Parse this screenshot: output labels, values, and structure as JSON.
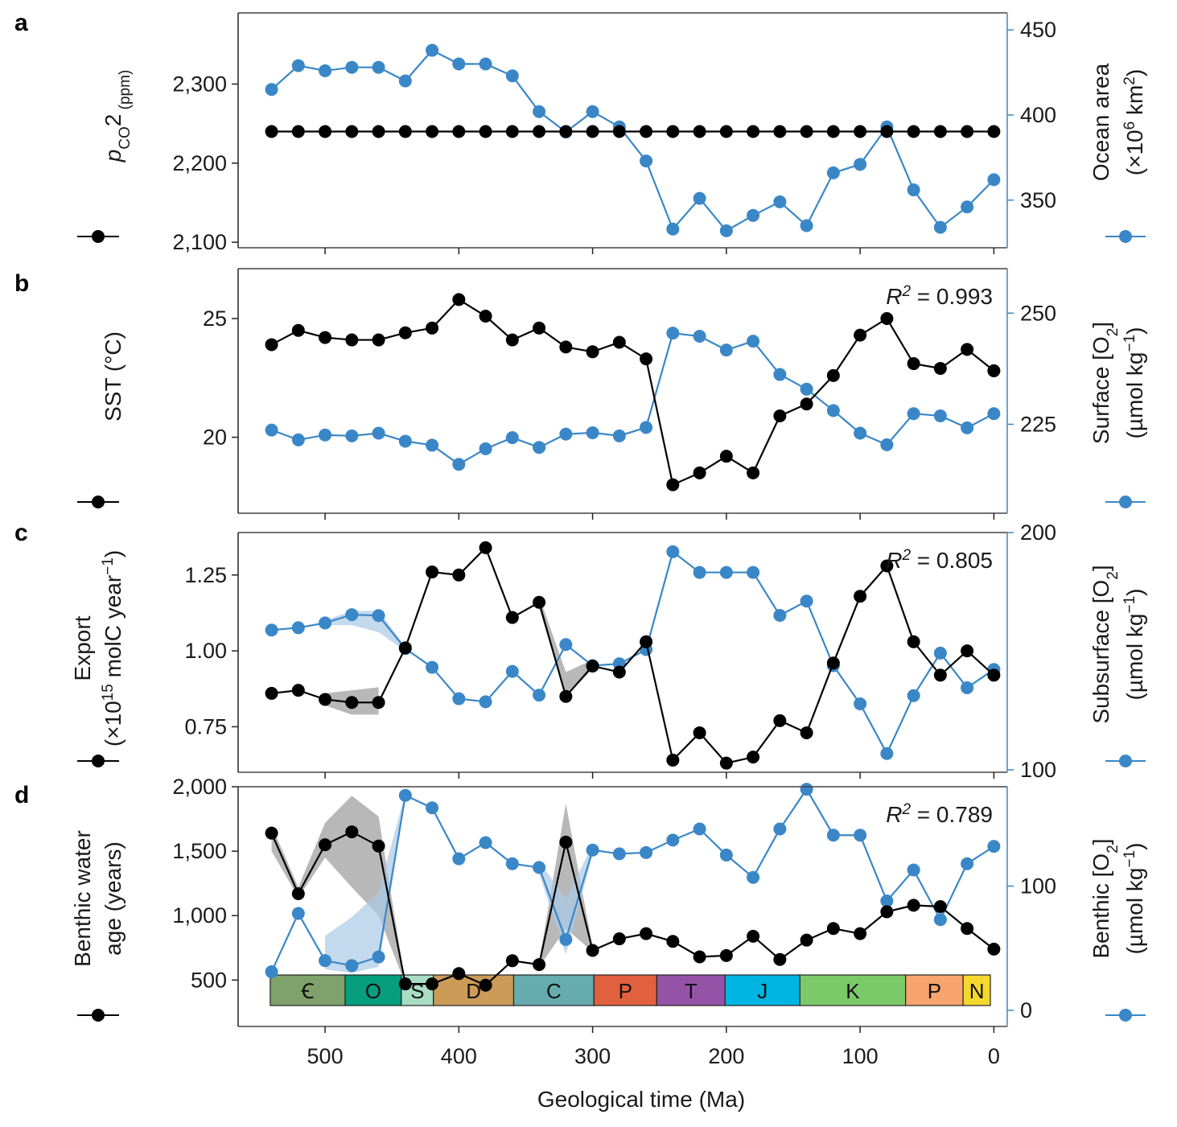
{
  "figure": {
    "xlabel": "Geological time (Ma)",
    "xticks": [
      "500",
      "400",
      "300",
      "200",
      "100",
      "0"
    ],
    "xtick_values": [
      500,
      400,
      300,
      200,
      100,
      0
    ],
    "colors": {
      "left": "#000000",
      "right": "#3a87c8",
      "band_left": "#9a9a9a",
      "band_right": "#a9c9e6"
    }
  },
  "chart_data": [
    {
      "panel": "a",
      "type": "line",
      "title": "",
      "r2": "",
      "xlim": [
        565,
        -10
      ],
      "left_axis": {
        "label_parts": [
          "p",
          "CO",
          "2",
          " (ppm)"
        ],
        "ylim": [
          2093,
          2390
        ],
        "ticks": [
          2100,
          2200,
          2300
        ],
        "tick_labels": [
          "2,100",
          "2,200",
          "2,300"
        ]
      },
      "right_axis": {
        "label_line1": "Ocean area",
        "label_line2_parts": [
          "(×10",
          "6",
          " km",
          "2",
          ")"
        ],
        "ylim": [
          322,
          460
        ],
        "ticks": [
          350,
          400,
          450
        ],
        "tick_labels": [
          "350",
          "400",
          "450"
        ]
      },
      "series": [
        {
          "name": "pCO2",
          "axis": "left",
          "color": "#000000",
          "x": [
            540,
            520,
            500,
            480,
            460,
            440,
            420,
            400,
            380,
            360,
            340,
            320,
            300,
            280,
            260,
            240,
            220,
            200,
            180,
            160,
            140,
            120,
            100,
            80,
            60,
            40,
            20,
            0
          ],
          "values": [
            2240,
            2240,
            2240,
            2240,
            2240,
            2240,
            2240,
            2240,
            2240,
            2240,
            2240,
            2240,
            2240,
            2240,
            2240,
            2240,
            2240,
            2240,
            2240,
            2240,
            2240,
            2240,
            2240,
            2240,
            2240,
            2240,
            2240,
            2240
          ]
        },
        {
          "name": "Ocean area",
          "axis": "right",
          "color": "#3a87c8",
          "x": [
            540,
            520,
            500,
            480,
            460,
            440,
            420,
            400,
            380,
            360,
            340,
            320,
            300,
            280,
            260,
            240,
            220,
            200,
            180,
            160,
            140,
            120,
            100,
            80,
            60,
            40,
            20,
            0
          ],
          "values": [
            415,
            429,
            426,
            428,
            428,
            420,
            438,
            430,
            430,
            423,
            402,
            390,
            402,
            393,
            373,
            333,
            351,
            332,
            341,
            349,
            335,
            366,
            371,
            393,
            356,
            334,
            346,
            362
          ]
        }
      ],
      "bands": []
    },
    {
      "panel": "b",
      "type": "line",
      "title": "",
      "r2": "= 0.993",
      "xlim": [
        565,
        -10
      ],
      "left_axis": {
        "label_parts": [
          "SST (°C)"
        ],
        "ylim": [
          16.8,
          27.1
        ],
        "ticks": [
          20,
          25
        ],
        "tick_labels": [
          "20",
          "25"
        ]
      },
      "right_axis": {
        "label_line1_parts": [
          "Surface [O",
          "2",
          "]"
        ],
        "label_line2_parts": [
          "(µmol kg",
          "−1",
          ")"
        ],
        "ylim": [
          205,
          260
        ],
        "ticks": [
          225,
          250
        ],
        "tick_labels": [
          "225",
          "250"
        ]
      },
      "series": [
        {
          "name": "SST",
          "axis": "left",
          "color": "#000000",
          "x": [
            540,
            520,
            500,
            480,
            460,
            440,
            420,
            400,
            380,
            360,
            340,
            320,
            300,
            280,
            260,
            240,
            220,
            200,
            180,
            160,
            140,
            120,
            100,
            80,
            60,
            40,
            20,
            0
          ],
          "values": [
            23.9,
            24.5,
            24.2,
            24.1,
            24.1,
            24.4,
            24.6,
            25.8,
            25.1,
            24.1,
            24.6,
            23.8,
            23.6,
            24.0,
            23.3,
            18.0,
            18.5,
            19.2,
            18.5,
            20.9,
            21.4,
            22.6,
            24.3,
            25.0,
            23.1,
            22.9,
            23.7,
            22.8
          ]
        },
        {
          "name": "Surface O2",
          "axis": "right",
          "color": "#3a87c8",
          "x": [
            540,
            520,
            500,
            480,
            460,
            440,
            420,
            400,
            380,
            360,
            340,
            320,
            300,
            280,
            260,
            240,
            220,
            200,
            180,
            160,
            140,
            120,
            100,
            80,
            60,
            40,
            20,
            0
          ],
          "values": [
            223.7,
            221.5,
            222.6,
            222.4,
            223.0,
            221.2,
            220.3,
            216.0,
            219.5,
            222.0,
            219.8,
            222.8,
            223.1,
            222.4,
            224.3,
            245.5,
            244.8,
            241.7,
            243.7,
            236.2,
            232.9,
            228.1,
            223.0,
            220.4,
            227.4,
            226.9,
            224.2,
            227.4
          ]
        }
      ],
      "bands": []
    },
    {
      "panel": "c",
      "type": "line",
      "title": "",
      "r2": "= 0.805",
      "xlim": [
        565,
        -10
      ],
      "left_axis": {
        "label_line1": "Export",
        "label_line2_parts": [
          "(×10",
          "15",
          " molC year",
          "−1",
          ")"
        ],
        "ylim": [
          0.6,
          1.39
        ],
        "ticks": [
          0.75,
          1.0,
          1.25
        ],
        "tick_labels": [
          "0.75",
          "1.00",
          "1.25"
        ]
      },
      "right_axis": {
        "label_line1_parts": [
          "Subsurface [O",
          "2",
          "]"
        ],
        "label_line2_parts": [
          "(µmol kg",
          "−1",
          ")"
        ],
        "ylim": [
          99,
          200
        ],
        "ticks": [
          100,
          200
        ],
        "tick_labels": [
          "100",
          "200"
        ]
      },
      "series": [
        {
          "name": "Export",
          "axis": "left",
          "color": "#000000",
          "x": [
            540,
            520,
            500,
            480,
            460,
            440,
            420,
            400,
            380,
            360,
            340,
            320,
            300,
            280,
            260,
            240,
            220,
            200,
            180,
            160,
            140,
            120,
            100,
            80,
            60,
            40,
            20,
            0
          ],
          "values": [
            0.86,
            0.87,
            0.84,
            0.83,
            0.83,
            1.01,
            1.26,
            1.25,
            1.34,
            1.11,
            1.16,
            0.85,
            0.95,
            0.93,
            1.03,
            0.64,
            0.73,
            0.63,
            0.65,
            0.77,
            0.73,
            0.96,
            1.18,
            1.28,
            1.03,
            0.92,
            1.0,
            0.92
          ]
        },
        {
          "name": "Subsurface O2",
          "axis": "right",
          "color": "#3a87c8",
          "x": [
            540,
            520,
            500,
            480,
            460,
            440,
            420,
            400,
            380,
            360,
            340,
            320,
            300,
            280,
            260,
            240,
            220,
            200,
            180,
            160,
            140,
            120,
            100,
            80,
            60,
            40,
            20,
            0
          ],
          "values": [
            158.9,
            159.9,
            161.9,
            165.4,
            165.0,
            151.1,
            143.2,
            130.0,
            128.7,
            141.5,
            131.5,
            152.8,
            143.9,
            144.7,
            150.7,
            191.9,
            183.2,
            183.2,
            183.2,
            165.1,
            171.1,
            143.9,
            127.8,
            106.9,
            131.3,
            149.2,
            134.6,
            142.3
          ]
        }
      ],
      "bands": [
        {
          "axis": "left",
          "x": [
            500,
            480,
            460
          ],
          "low": [
            0.82,
            0.79,
            0.79
          ],
          "high": [
            0.86,
            0.87,
            0.88
          ]
        },
        {
          "axis": "left",
          "x": [
            340,
            320,
            300
          ],
          "low": [
            1.14,
            0.85,
            0.94
          ],
          "high": [
            1.18,
            0.93,
            0.97
          ]
        },
        {
          "axis": "right",
          "x": [
            500,
            480,
            460,
            440
          ],
          "low": [
            161,
            161,
            158,
            150
          ],
          "high": [
            163,
            167,
            167,
            152
          ]
        }
      ]
    },
    {
      "panel": "d",
      "type": "line",
      "title": "",
      "r2": "= 0.789",
      "xlim": [
        565,
        -10
      ],
      "left_axis": {
        "label_line1": "Benthic water",
        "label_line2": "age (years)",
        "ylim": [
          140,
          2000
        ],
        "ticks": [
          500,
          1000,
          1500,
          2000
        ],
        "tick_labels": [
          "500",
          "1,000",
          "1,500",
          "2,000"
        ]
      },
      "right_axis": {
        "label_line1_parts": [
          "Benthic [O",
          "2",
          "]"
        ],
        "label_line2_parts": [
          "(µmol kg",
          "−1",
          ")"
        ],
        "ylim": [
          -13,
          180
        ],
        "ticks": [
          0,
          100
        ],
        "tick_labels": [
          "0",
          "100"
        ]
      },
      "series": [
        {
          "name": "Benthic water age",
          "axis": "left",
          "color": "#000000",
          "x": [
            540,
            520,
            500,
            480,
            460,
            440,
            420,
            400,
            380,
            360,
            340,
            320,
            300,
            280,
            260,
            240,
            220,
            200,
            180,
            160,
            140,
            120,
            100,
            80,
            60,
            40,
            20,
            0
          ],
          "values": [
            1640,
            1170,
            1550,
            1650,
            1540,
            470,
            470,
            550,
            460,
            650,
            620,
            1570,
            730,
            820,
            860,
            800,
            680,
            690,
            840,
            660,
            810,
            900,
            860,
            1030,
            1080,
            1070,
            900,
            740
          ]
        },
        {
          "name": "Benthic O2",
          "axis": "right",
          "color": "#3a87c8",
          "x": [
            540,
            520,
            500,
            480,
            460,
            440,
            420,
            400,
            380,
            360,
            340,
            320,
            300,
            280,
            260,
            240,
            220,
            200,
            180,
            160,
            140,
            120,
            100,
            80,
            60,
            40,
            20,
            0
          ],
          "values": [
            31,
            78,
            40,
            36,
            43,
            173,
            163,
            122,
            135,
            118,
            115,
            57,
            129,
            126,
            127,
            137,
            146,
            125,
            107,
            146,
            178,
            141,
            141,
            88,
            113,
            73,
            118,
            132
          ]
        }
      ],
      "bands": [
        {
          "axis": "left",
          "x": [
            540,
            520,
            500,
            480,
            460,
            440
          ],
          "low": [
            1500,
            1140,
            1450,
            1220,
            1000,
            470
          ],
          "high": [
            1700,
            1220,
            1720,
            1930,
            1770,
            480
          ]
        },
        {
          "axis": "left",
          "x": [
            340,
            320,
            300
          ],
          "low": [
            600,
            900,
            720
          ],
          "high": [
            640,
            1870,
            760
          ]
        },
        {
          "axis": "right",
          "x": [
            500,
            480,
            460,
            440
          ],
          "low": [
            33,
            30,
            35,
            170
          ],
          "high": [
            60,
            75,
            95,
            175
          ]
        },
        {
          "axis": "right",
          "x": [
            340,
            320,
            300
          ],
          "low": [
            110,
            45,
            125
          ],
          "high": [
            120,
            90,
            133
          ]
        }
      ],
      "periods": [
        {
          "label": "Ꞓ",
          "start": 541,
          "end": 485,
          "color": "#7fa16b"
        },
        {
          "label": "O",
          "start": 485,
          "end": 443,
          "color": "#069e7e"
        },
        {
          "label": "S",
          "start": 443,
          "end": 419,
          "color": "#a8dcc3"
        },
        {
          "label": "D",
          "start": 419,
          "end": 359,
          "color": "#cc9b58"
        },
        {
          "label": "C",
          "start": 359,
          "end": 299,
          "color": "#66acaf"
        },
        {
          "label": "P",
          "start": 299,
          "end": 252,
          "color": "#e1603e"
        },
        {
          "label": "T",
          "start": 252,
          "end": 201,
          "color": "#9553a8"
        },
        {
          "label": "J",
          "start": 201,
          "end": 145,
          "color": "#00b4e1"
        },
        {
          "label": "K",
          "start": 145,
          "end": 66,
          "color": "#7cc96a"
        },
        {
          "label": "P",
          "start": 66,
          "end": 23,
          "color": "#f8a46e"
        },
        {
          "label": "N",
          "start": 23,
          "end": 2.6,
          "color": "#f5d82e"
        }
      ]
    }
  ]
}
